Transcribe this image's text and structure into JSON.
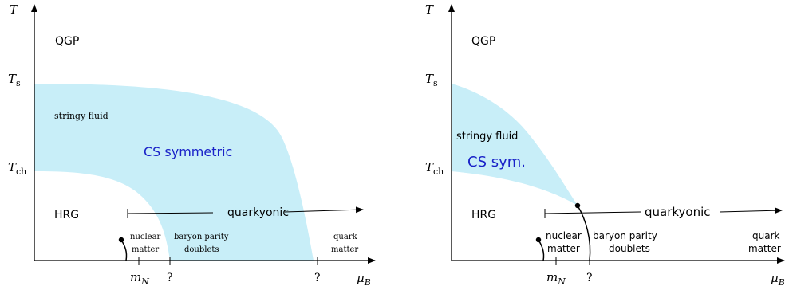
{
  "colors": {
    "region_fill": "#c8eef8",
    "cs_label": "#1a22c8",
    "ink": "#000000"
  },
  "left": {
    "axis_y": "T",
    "axis_x": "μ",
    "axis_x_sub": "B",
    "tick_ts": "T",
    "tick_ts_sub": "s",
    "tick_tch": "T",
    "tick_tch_sub": "ch",
    "qgp": "QGP",
    "stringy": "stringy fluid",
    "cs": "CS symmetric",
    "hrg": "HRG",
    "quarkyonic": "quarkyonic",
    "nuclear_1": "nuclear",
    "nuclear_2": "matter",
    "baryon_1": "baryon parity",
    "baryon_2": "doublets",
    "quark_1": "quark",
    "quark_2": "matter",
    "tick_mn": "m",
    "tick_mn_sub": "N",
    "tick_q1": "?",
    "tick_q2": "?"
  },
  "right": {
    "axis_y": "T",
    "axis_x": "μ",
    "axis_x_sub": "B",
    "tick_ts": "T",
    "tick_ts_sub": "s",
    "tick_tch": "T",
    "tick_tch_sub": "ch",
    "qgp": "QGP",
    "stringy": "stringy fluid",
    "cs": "CS sym.",
    "hrg": "HRG",
    "quarkyonic": "quarkyonic",
    "nuclear_1": "nuclear",
    "nuclear_2": "matter",
    "baryon_1": "baryon parity",
    "baryon_2": "doublets",
    "quark_1": "quark",
    "quark_2": "matter",
    "tick_mn": "m",
    "tick_mn_sub": "N",
    "tick_q1": "?"
  }
}
